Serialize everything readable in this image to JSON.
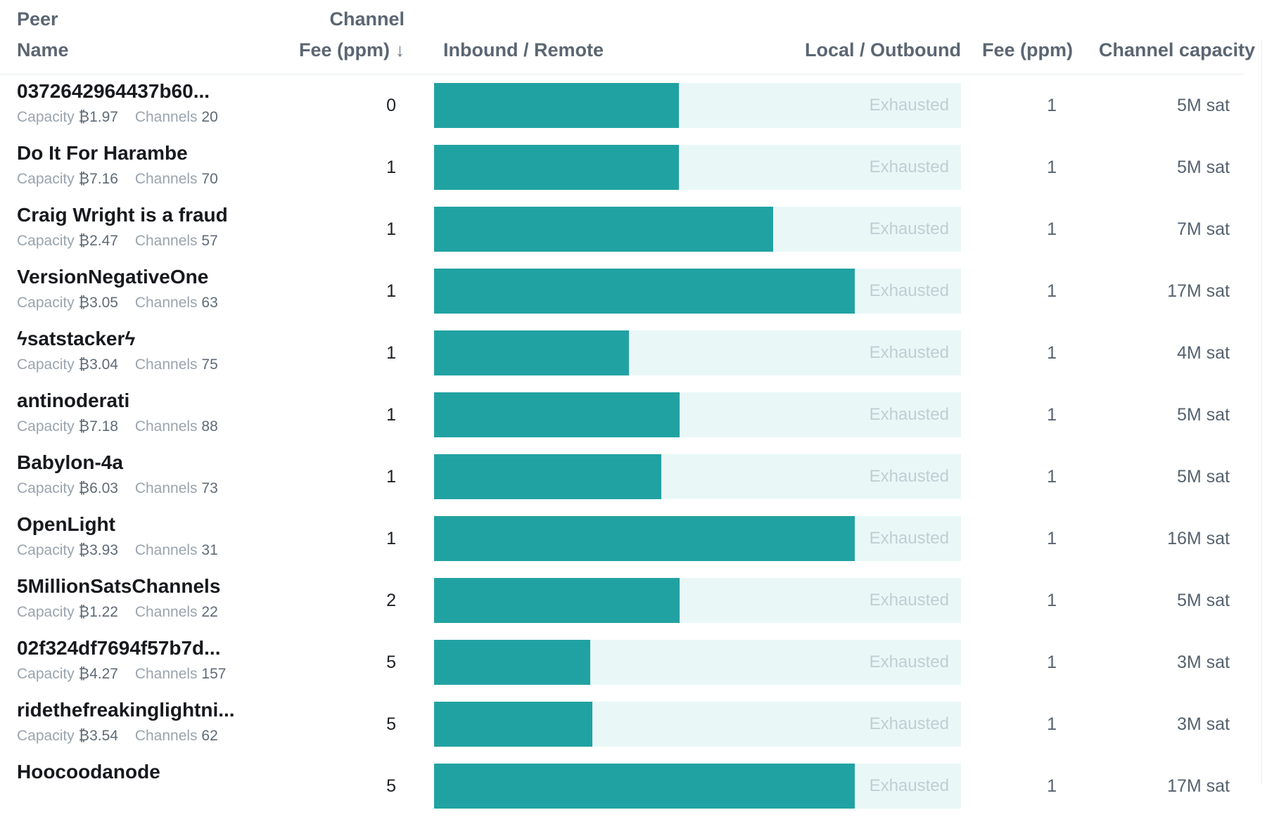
{
  "colors": {
    "accent_teal": "#21a2a2",
    "track_light": "#e9f8f7",
    "exhausted_text": "#c3ccd4",
    "header_text": "#5b6672",
    "name_text": "#17191d"
  },
  "table": {
    "header": {
      "peer_group": "Peer",
      "name": "Name",
      "channel_group": "Channel",
      "channel_fee": "Fee (ppm)",
      "sort_arrow": "↓",
      "inbound": "Inbound / Remote",
      "outbound": "Local / Outbound",
      "fee": "Fee (ppm)",
      "capacity": "Channel capacity"
    },
    "sub_labels": {
      "capacity": "Capacity",
      "channels": "Channels"
    },
    "rows": [
      {
        "name": "0372642964437b60...",
        "capacity_btc": "₿1.97",
        "channels": "20",
        "channel_fee": "0",
        "inbound_pct": 46.5,
        "outbound_status": "Exhausted",
        "fee": "1",
        "capacity": "5M sat"
      },
      {
        "name": "Do It For Harambe",
        "capacity_btc": "₿7.16",
        "channels": "70",
        "channel_fee": "1",
        "inbound_pct": 46.5,
        "outbound_status": "Exhausted",
        "fee": "1",
        "capacity": "5M sat"
      },
      {
        "name": "Craig Wright is a fraud",
        "capacity_btc": "₿2.47",
        "channels": "57",
        "channel_fee": "1",
        "inbound_pct": 64.4,
        "outbound_status": "Exhausted",
        "fee": "1",
        "capacity": "7M sat"
      },
      {
        "name": "VersionNegativeOne",
        "capacity_btc": "₿3.05",
        "channels": "63",
        "channel_fee": "1",
        "inbound_pct": 79.9,
        "outbound_status": "Exhausted",
        "fee": "1",
        "capacity": "17M sat"
      },
      {
        "name": "ϟsatstackerϟ",
        "capacity_btc": "₿3.04",
        "channels": "75",
        "channel_fee": "1",
        "inbound_pct": 37.0,
        "outbound_status": "Exhausted",
        "fee": "1",
        "capacity": "4M sat"
      },
      {
        "name": "antinoderati",
        "capacity_btc": "₿7.18",
        "channels": "88",
        "channel_fee": "1",
        "inbound_pct": 46.6,
        "outbound_status": "Exhausted",
        "fee": "1",
        "capacity": "5M sat"
      },
      {
        "name": "Babylon-4a",
        "capacity_btc": "₿6.03",
        "channels": "73",
        "channel_fee": "1",
        "inbound_pct": 43.1,
        "outbound_status": "Exhausted",
        "fee": "1",
        "capacity": "5M sat"
      },
      {
        "name": "OpenLight",
        "capacity_btc": "₿3.93",
        "channels": "31",
        "channel_fee": "1",
        "inbound_pct": 79.9,
        "outbound_status": "Exhausted",
        "fee": "1",
        "capacity": "16M sat"
      },
      {
        "name": "5MillionSatsChannels",
        "capacity_btc": "₿1.22",
        "channels": "22",
        "channel_fee": "2",
        "inbound_pct": 46.6,
        "outbound_status": "Exhausted",
        "fee": "1",
        "capacity": "5M sat"
      },
      {
        "name": "02f324df7694f57b7d...",
        "capacity_btc": "₿4.27",
        "channels": "157",
        "channel_fee": "5",
        "inbound_pct": 29.6,
        "outbound_status": "Exhausted",
        "fee": "1",
        "capacity": "3M sat"
      },
      {
        "name": "ridethefreakinglightni...",
        "capacity_btc": "₿3.54",
        "channels": "62",
        "channel_fee": "5",
        "inbound_pct": 30.0,
        "outbound_status": "Exhausted",
        "fee": "1",
        "capacity": "3M sat"
      },
      {
        "name": "Hoocoodanode",
        "capacity_btc": "",
        "channels": "",
        "channel_fee": "5",
        "inbound_pct": 79.9,
        "outbound_status": "Exhausted",
        "fee": "1",
        "capacity": "17M sat"
      }
    ]
  }
}
